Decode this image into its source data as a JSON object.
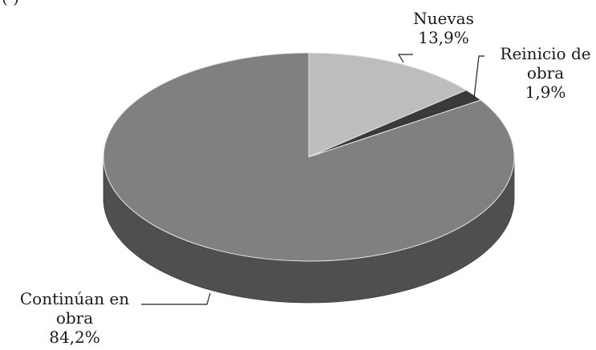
{
  "chart_data": {
    "type": "pie",
    "style": "3d",
    "title": "",
    "slices": [
      {
        "label_lines": [
          "Nuevas",
          "13,9%"
        ],
        "category": "Nuevas",
        "percent": 13.9,
        "color": "#bdbdbd"
      },
      {
        "label_lines": [
          "Reinicio de",
          "obra",
          "1,9%"
        ],
        "category": "Reinicio de obra",
        "percent": 1.9,
        "color": "#3a3a3a"
      },
      {
        "label_lines": [
          "Continúan en",
          "obra",
          "84,2%"
        ],
        "category": "Continúan en obra",
        "percent": 84.2,
        "color": "#808080"
      }
    ],
    "legend": "none"
  },
  "header_fragment": "(                    )"
}
